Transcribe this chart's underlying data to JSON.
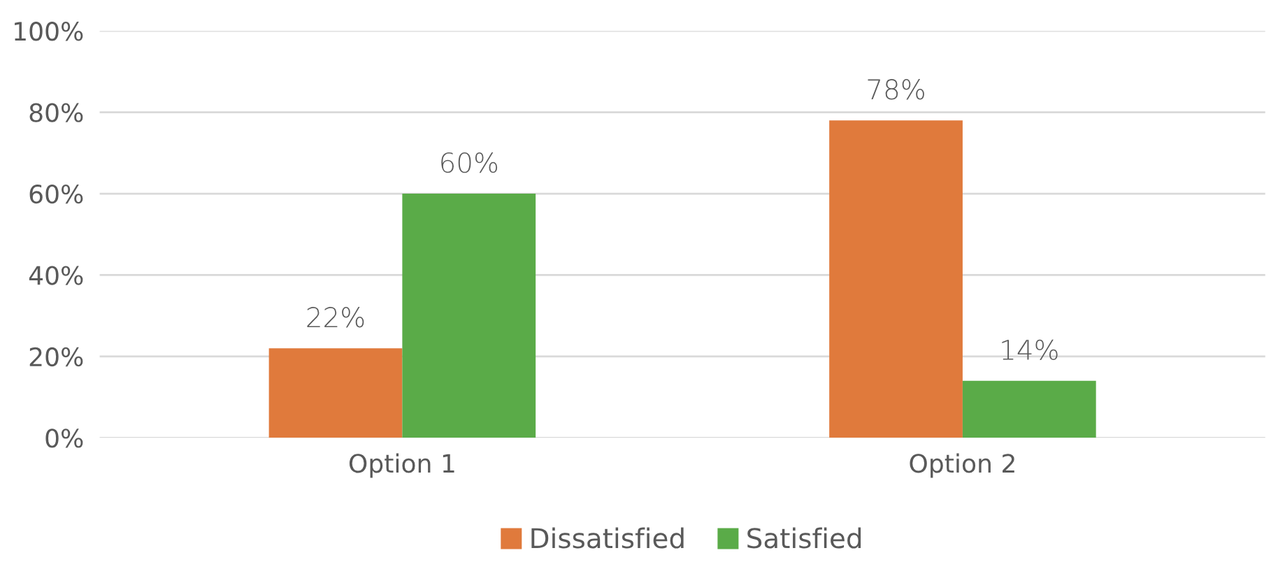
{
  "chart_data": {
    "type": "bar",
    "categories": [
      "Option 1",
      "Option 2"
    ],
    "series": [
      {
        "name": "Dissatisfied",
        "color": "#e07a3c",
        "values": [
          22,
          78
        ],
        "value_labels": [
          "22%",
          "78%"
        ]
      },
      {
        "name": "Satisfied",
        "color": "#5aab48",
        "values": [
          60,
          14
        ],
        "value_labels": [
          "60%",
          "14%"
        ]
      }
    ],
    "ylim": [
      0,
      100
    ],
    "yticks": [
      {
        "value": 0,
        "label": "0%"
      },
      {
        "value": 20,
        "label": "20%"
      },
      {
        "value": 40,
        "label": "40%"
      },
      {
        "value": 60,
        "label": "60%"
      },
      {
        "value": 80,
        "label": "80%"
      },
      {
        "value": 100,
        "label": "100%"
      }
    ],
    "grid": "y",
    "legend": "bottom"
  }
}
